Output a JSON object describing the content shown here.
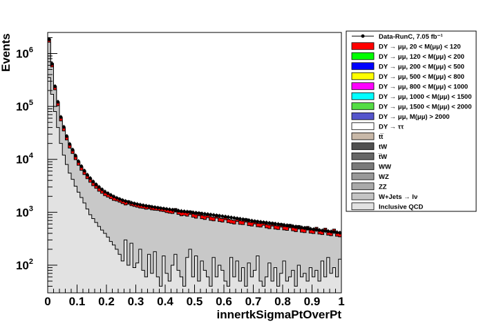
{
  "chart_data": {
    "type": "histogram",
    "title": "",
    "xlabel": "innertkSigmaPtOverPt",
    "ylabel": "Events",
    "xlim": [
      0,
      1
    ],
    "ylim": [
      30,
      2500000
    ],
    "y_scale": "log",
    "x_ticks": [
      "0",
      "0.1",
      "0.2",
      "0.3",
      "0.4",
      "0.5",
      "0.6",
      "0.7",
      "0.8",
      "0.9",
      "1"
    ],
    "y_ticks": [
      {
        "base": "10",
        "exp": "2",
        "value": 100
      },
      {
        "base": "10",
        "exp": "3",
        "value": 1000
      },
      {
        "base": "10",
        "exp": "4",
        "value": 10000
      },
      {
        "base": "10",
        "exp": "5",
        "value": 100000
      },
      {
        "base": "10",
        "exp": "6",
        "value": 1000000
      }
    ],
    "bins": 100,
    "bin_width": 0.01,
    "stack_totals": [
      1900000,
      650000,
      240000,
      120000,
      62000,
      40000,
      27000,
      19000,
      15000,
      11500,
      9000,
      7200,
      6000,
      5000,
      4300,
      3700,
      3300,
      2900,
      2650,
      2400,
      2250,
      2100,
      1950,
      1900,
      1800,
      1700,
      1600,
      1650,
      1550,
      1500,
      1450,
      1400,
      1380,
      1330,
      1350,
      1290,
      1270,
      1260,
      1220,
      1200,
      1150,
      1120,
      1100,
      1180,
      1060,
      1000,
      1020,
      980,
      1060,
      940,
      900,
      1000,
      880,
      850,
      920,
      820,
      800,
      900,
      780,
      760,
      840,
      740,
      720,
      700,
      780,
      690,
      680,
      760,
      650,
      640,
      700,
      620,
      610,
      660,
      590,
      570,
      640,
      560,
      550,
      610,
      540,
      530,
      590,
      520,
      500,
      560,
      490,
      480,
      540,
      470,
      460,
      520,
      450,
      440,
      500,
      430,
      420,
      480,
      410,
      400
    ],
    "data_points": [
      1850000,
      640000,
      240000,
      122000,
      63000,
      41000,
      27500,
      19500,
      15200,
      11800,
      9200,
      7400,
      6100,
      5100,
      4400,
      3800,
      3350,
      3000,
      2700,
      2450,
      2280,
      2120,
      1980,
      1860,
      1770,
      1690,
      1620,
      1560,
      1510,
      1460,
      1420,
      1385,
      1350,
      1320,
      1290,
      1265,
      1240,
      1215,
      1190,
      1170,
      1150,
      1130,
      1110,
      1090,
      1070,
      1050,
      1035,
      1020,
      1005,
      990,
      975,
      960,
      945,
      930,
      915,
      900,
      885,
      870,
      855,
      840,
      825,
      810,
      795,
      780,
      765,
      750,
      735,
      720,
      705,
      690,
      675,
      665,
      655,
      645,
      635,
      625,
      615,
      605,
      595,
      585,
      575,
      565,
      555,
      545,
      535,
      525,
      515,
      505,
      495,
      485,
      475,
      468,
      460,
      452,
      445,
      438,
      431,
      424,
      417,
      410
    ],
    "qcd_totals": [
      350000,
      170000,
      80000,
      40000,
      20000,
      12000,
      8000,
      5500,
      4200,
      3100,
      2400,
      1900,
      1500,
      1150,
      900,
      760,
      640,
      540,
      460,
      400,
      340,
      280,
      240,
      200,
      160,
      120,
      300,
      100,
      260,
      90,
      110,
      200,
      80,
      60,
      160,
      70,
      180,
      60,
      40,
      150,
      70,
      50,
      100,
      160,
      80,
      60,
      40,
      140,
      200,
      60,
      150,
      50,
      120,
      80,
      60,
      40,
      140,
      60,
      100,
      80,
      50,
      40,
      140,
      60,
      120,
      50,
      90,
      40,
      110,
      60,
      80,
      150,
      50,
      40,
      60,
      110,
      50,
      90,
      40,
      70,
      120,
      50,
      60,
      80,
      40,
      100,
      60,
      70,
      50,
      90,
      60,
      80,
      50,
      120,
      60,
      140,
      70,
      90,
      60,
      130
    ],
    "series": [
      {
        "name": "Data-RunC, 7.05 fb⁻¹",
        "style": "marker",
        "color": "#000000"
      },
      {
        "name": "DY → μμ, 20 < M(μμ) <  120",
        "style": "fill",
        "color": "#ff0000"
      },
      {
        "name": "DY → μμ, 120 < M(μμ) <  200",
        "style": "fill",
        "color": "#00ff00"
      },
      {
        "name": "DY → μμ, 200 < M(μμ) <  500",
        "style": "fill",
        "color": "#0000ff"
      },
      {
        "name": "DY → μμ, 500 < M(μμ) <  800",
        "style": "fill",
        "color": "#ffff00"
      },
      {
        "name": "DY → μμ, 800 < M(μμ) < 1000",
        "style": "fill",
        "color": "#ff00ff"
      },
      {
        "name": "DY → μμ, 1000 < M(μμ) < 1500",
        "style": "fill",
        "color": "#00ffff"
      },
      {
        "name": "DY → μμ, 1500 < M(μμ) < 2000",
        "style": "fill",
        "color": "#55dd44"
      },
      {
        "name": "DY → μμ, M(μμ) > 2000",
        "style": "fill",
        "color": "#5555cc"
      },
      {
        "name": "DY → ττ",
        "style": "fill",
        "color": "#ffffff"
      },
      {
        "name": "tt̅",
        "style": "fill",
        "color": "#c8b8a8"
      },
      {
        "name": "tW",
        "style": "fill",
        "color": "#505050"
      },
      {
        "name": "t̅W",
        "style": "fill",
        "color": "#666666"
      },
      {
        "name": "WW",
        "style": "fill",
        "color": "#7a7a7a"
      },
      {
        "name": "WZ",
        "style": "fill",
        "color": "#999999"
      },
      {
        "name": "ZZ",
        "style": "fill",
        "color": "#aaaaaa"
      },
      {
        "name": "W+Jets → lν",
        "style": "fill",
        "color": "#c4c4c4"
      },
      {
        "name": "Inclusive QCD",
        "style": "fill",
        "color": "#e2e2e2"
      }
    ],
    "colors": {
      "dy_fill": "#ff0000",
      "ewk_fill": "#c8c8c8",
      "qcd_fill": "#e2e2e2",
      "data_marker": "#000000"
    },
    "legend_position": "right"
  }
}
